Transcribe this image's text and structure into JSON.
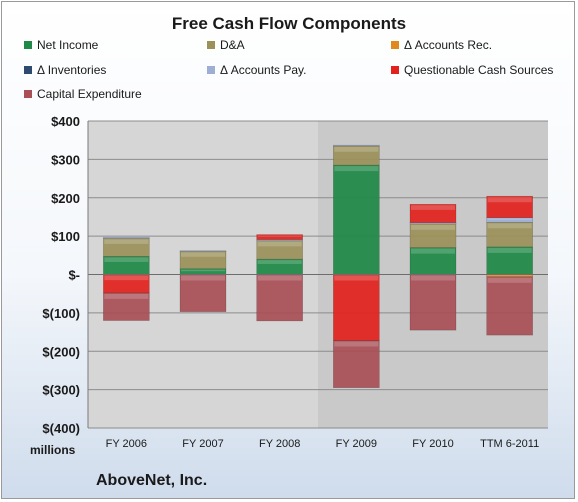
{
  "chart_data": {
    "type": "bar",
    "stacked": true,
    "title": "Free Cash Flow Components",
    "categories": [
      "FY 2006",
      "FY 2007",
      "FY 2008",
      "FY 2009",
      "FY 2010",
      "TTM 6-2011"
    ],
    "series": [
      {
        "name": "Net Income",
        "color": "#1e8a46",
        "values": [
          47,
          15,
          40,
          285,
          70,
          72
        ]
      },
      {
        "name": "D&A",
        "color": "#9c915a",
        "values": [
          47,
          45,
          48,
          50,
          62,
          64
        ]
      },
      {
        "name": "Δ Accounts Rec.",
        "color": "#e0891e",
        "values": [
          0,
          0,
          0,
          0,
          0,
          -6
        ]
      },
      {
        "name": "Δ Inventories",
        "color": "#2e4a6e",
        "values": [
          0,
          0,
          0,
          0,
          0,
          0
        ]
      },
      {
        "name": "Δ Accounts Pay.",
        "color": "#9db0d4",
        "values": [
          3,
          2,
          3,
          2,
          3,
          12
        ]
      },
      {
        "name": "Questionable Cash Sources",
        "color": "#e3221e",
        "values": [
          -48,
          0,
          13,
          -172,
          48,
          56
        ]
      },
      {
        "name": "Capital Expenditure",
        "color": "#a94f55",
        "values": [
          -72,
          -97,
          -121,
          -123,
          -145,
          -152
        ]
      }
    ],
    "ylim": [
      -400,
      400
    ],
    "yticks": [
      400,
      300,
      200,
      100,
      0,
      -100,
      -200,
      -300,
      -400
    ],
    "ytick_labels": [
      "$400",
      "$300",
      "$200",
      "$100",
      "$-",
      "$(100)",
      "$(200)",
      "$(300)",
      "$(400)"
    ],
    "units_label": "millions",
    "grid": true,
    "legend_position": "top"
  },
  "company": "AboveNet, Inc."
}
